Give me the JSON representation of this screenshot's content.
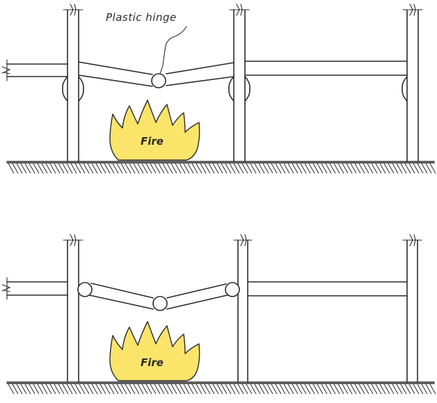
{
  "panels": {
    "top": {
      "annotation": "Plastic hinge",
      "fire_label": "Fire"
    },
    "bottom": {
      "fire_label": "Fire"
    }
  },
  "colors": {
    "fire_fill": "#fbe46a",
    "line": "#2a2a2a",
    "background": "#ffffff"
  }
}
